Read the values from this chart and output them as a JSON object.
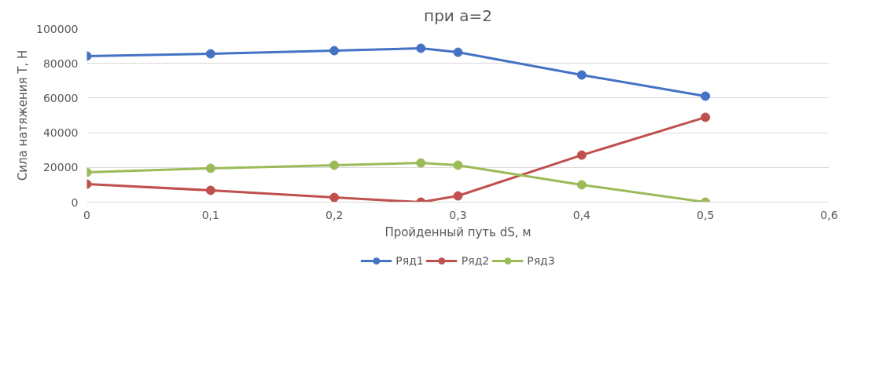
{
  "chart_data": {
    "type": "line",
    "title": "при a=2",
    "xlabel": "Пройденный путь dS, м",
    "ylabel": "Сила натяжения T, Н",
    "x": [
      0,
      0.1,
      0.2,
      0.27,
      0.3,
      0.4,
      0.5
    ],
    "series": [
      {
        "name": "Ряд1",
        "color": "#4472c4",
        "values": [
          84200,
          85500,
          87300,
          88700,
          86400,
          73300,
          61100
        ]
      },
      {
        "name": "Ряд2",
        "color": "#c0504d",
        "values": [
          10400,
          6800,
          2700,
          0,
          3600,
          27100,
          48900
        ]
      },
      {
        "name": "Ряд3",
        "color": "#9bbb59",
        "values": [
          17200,
          19500,
          21300,
          22600,
          21300,
          10000,
          0
        ]
      }
    ],
    "xlim": [
      0,
      0.6
    ],
    "xticks": [
      0,
      {
        "value": 0.1,
        "label": "0,1"
      },
      {
        "value": 0.2,
        "label": "0,2"
      },
      {
        "value": 0.3,
        "label": "0,3"
      },
      {
        "value": 0.4,
        "label": "0,4"
      },
      {
        "value": 0.5,
        "label": "0,5"
      },
      {
        "value": 0.6,
        "label": "0,6"
      }
    ],
    "ylim": [
      0,
      100000
    ],
    "yticks": [
      0,
      20000,
      40000,
      60000,
      80000,
      100000
    ],
    "grid": "y",
    "legend": "bottom",
    "marker": "circle",
    "line_style": "solid"
  }
}
